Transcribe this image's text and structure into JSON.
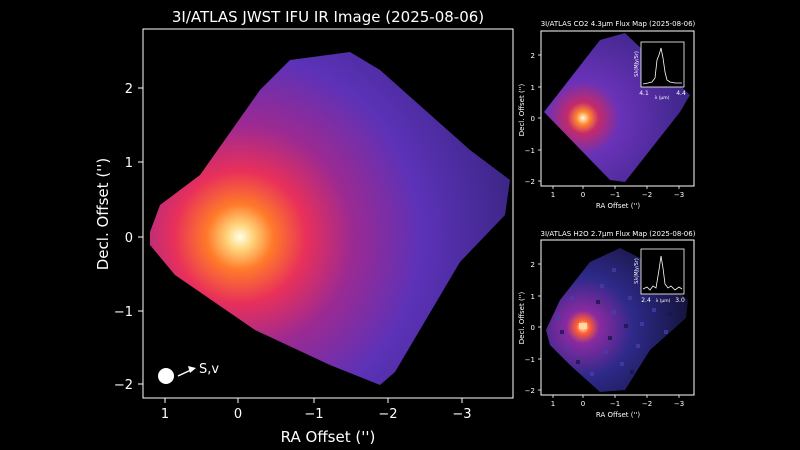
{
  "main": {
    "title": "3I/ATLAS JWST IFU IR Image (2025-08-06)",
    "xlabel": "RA Offset ('')",
    "ylabel": "Decl. Offset ('')",
    "xticks": [
      "1",
      "0",
      "−1",
      "−2",
      "−3"
    ],
    "yticks": [
      "2",
      "1",
      "0",
      "−1",
      "−2"
    ],
    "direction_label": "S,v"
  },
  "co2": {
    "title": "3I/ATLAS CO2 4.3µm Flux Map (2025-08-06)",
    "xlabel": "RA Offset ('')",
    "ylabel": "Decl. Offset ('')",
    "xticks": [
      "1",
      "0",
      "−1",
      "−2",
      "−3"
    ],
    "yticks": [
      "2",
      "1",
      "0",
      "−1",
      "−2"
    ],
    "inset": {
      "ylabel": "Sλ(MJy/Sr)",
      "xlabel": "λ (µm)",
      "xticks": [
        "4.1",
        "4.4"
      ]
    }
  },
  "h2o": {
    "title": "3I/ATLAS H2O 2.7µm Flux Map (2025-08-06)",
    "xlabel": "RA Offset ('')",
    "ylabel": "Decl. Offset ('')",
    "xticks": [
      "1",
      "0",
      "−1",
      "−2",
      "−3"
    ],
    "yticks": [
      "2",
      "1",
      "0",
      "−1",
      "−2"
    ],
    "inset": {
      "ylabel": "Sλ(MJy/Sr)",
      "xlabel": "λ (µm)",
      "xticks": [
        "2.4",
        "3.0"
      ]
    }
  },
  "colors": {
    "background": "#000000",
    "core": "#ffffe6",
    "halo": "#ff5a20",
    "field": "#2a1f6a"
  }
}
